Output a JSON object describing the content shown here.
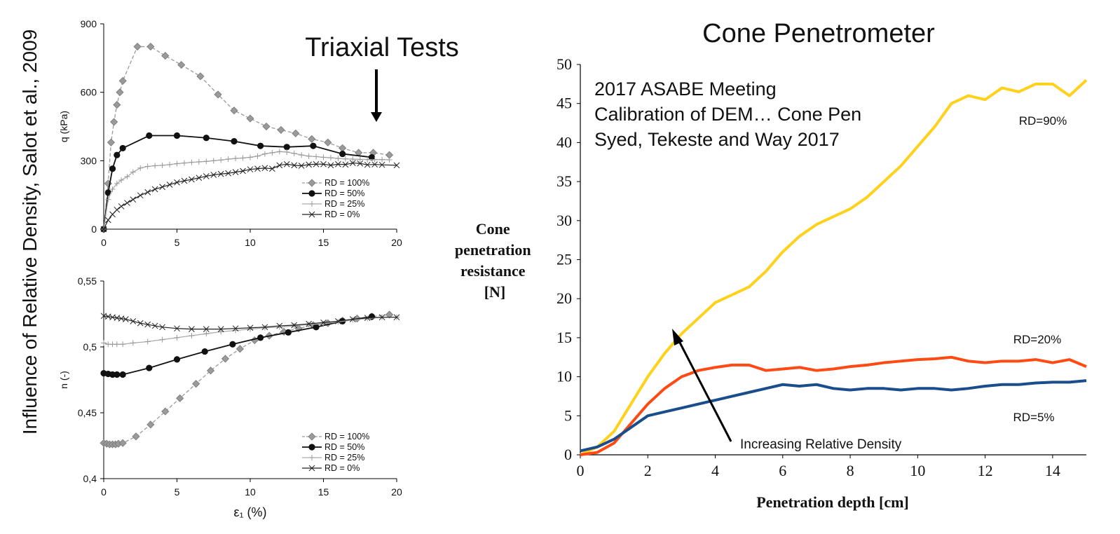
{
  "side_title": "Influence of Relative Density, Salot et al., 2009",
  "triaxial_title": "Triaxial Tests",
  "cone_title": "Cone Penetrometer",
  "cone_note": [
    "2017 ASABE Meeting",
    "Calibration of DEM… Cone Pen",
    "Syed, Tekeste and Way 2017"
  ],
  "arrow_label": "Increasing Relative Density",
  "colors": {
    "rd100": "#999999",
    "rd50": "#111111",
    "rd25": "#aaaaaa",
    "rd0": "#222222",
    "rd90": "#ffd11a",
    "rd20": "#ff4a14",
    "rd5": "#1a4d8c"
  },
  "chart_data": [
    {
      "type": "line",
      "ylabel": "q (kPa)",
      "xlabel": "",
      "xlim": [
        0,
        20
      ],
      "ylim": [
        0,
        900
      ],
      "xticks": [
        "0",
        "5",
        "10",
        "15",
        "20"
      ],
      "yticks": [
        "0",
        "300",
        "600",
        "900"
      ],
      "legend_position": "bottom-right",
      "series": [
        {
          "name": "RD = 100%",
          "marker": "diamond",
          "x": [
            0,
            0.3,
            0.5,
            0.7,
            0.9,
            1.1,
            1.3,
            2.3,
            3.2,
            4.2,
            5.3,
            6.6,
            7.8,
            8.9,
            10.0,
            11.1,
            12.1,
            13.1,
            14.2,
            15.3,
            16.3,
            17.4,
            18.4,
            19.5
          ],
          "y": [
            0,
            200,
            380,
            470,
            545,
            600,
            650,
            800,
            800,
            760,
            720,
            670,
            590,
            520,
            485,
            450,
            435,
            420,
            395,
            380,
            355,
            335,
            335,
            325
          ]
        },
        {
          "name": "RD = 50%",
          "marker": "circle",
          "x": [
            0,
            0.3,
            0.6,
            0.9,
            1.3,
            3.1,
            5.0,
            7.0,
            8.9,
            10.7,
            12.5,
            14.3,
            16.3,
            18.3
          ],
          "y": [
            0,
            160,
            265,
            325,
            355,
            410,
            410,
            400,
            385,
            365,
            360,
            365,
            330,
            315
          ]
        },
        {
          "name": "RD = 25%",
          "marker": "plus",
          "x": [
            0,
            0.3,
            0.6,
            0.9,
            1.2,
            1.6,
            2.0,
            2.5,
            3.0,
            3.5,
            4.0,
            4.5,
            5.0,
            5.5,
            6.0,
            6.5,
            7.0,
            7.5,
            8.0,
            8.5,
            9.0,
            9.5,
            10.0,
            10.5,
            11.0,
            11.5,
            12.0,
            12.5,
            13.0,
            13.5,
            14.0,
            14.5,
            15.0,
            15.5,
            16.0,
            16.5,
            17.0,
            17.5,
            18.0,
            18.5,
            19.0,
            19.5
          ],
          "y": [
            0,
            130,
            175,
            200,
            215,
            230,
            250,
            268,
            275,
            278,
            280,
            283,
            287,
            290,
            293,
            295,
            297,
            300,
            303,
            307,
            310,
            312,
            315,
            320,
            330,
            335,
            340,
            338,
            332,
            325,
            320,
            318,
            315,
            313,
            310,
            308,
            307,
            306,
            305,
            305,
            305,
            304
          ]
        },
        {
          "name": "RD = 0%",
          "marker": "x",
          "x": [
            0,
            0.3,
            0.6,
            0.9,
            1.2,
            1.6,
            2.0,
            2.5,
            3.0,
            3.5,
            4.0,
            4.5,
            5.0,
            5.5,
            6.0,
            6.5,
            7.0,
            7.5,
            8.0,
            8.5,
            9.0,
            9.5,
            10.0,
            10.5,
            11.0,
            11.5,
            12.0,
            12.5,
            13.0,
            13.5,
            14.0,
            14.5,
            15.0,
            15.5,
            16.0,
            16.5,
            17.0,
            17.5,
            18.0,
            18.5,
            19.0,
            20.0
          ],
          "y": [
            0,
            40,
            65,
            85,
            100,
            115,
            130,
            148,
            162,
            175,
            185,
            195,
            205,
            212,
            218,
            225,
            232,
            238,
            242,
            245,
            250,
            255,
            262,
            265,
            268,
            265,
            280,
            285,
            280,
            278,
            283,
            285,
            285,
            280,
            285,
            283,
            290,
            288,
            282,
            284,
            282,
            280
          ]
        }
      ]
    },
    {
      "type": "line",
      "ylabel": "n (-)",
      "xlabel": "ε₁ (%)",
      "xlim": [
        0,
        20
      ],
      "ylim": [
        0.4,
        0.55
      ],
      "xticks": [
        "0",
        "5",
        "10",
        "15",
        "20"
      ],
      "yticks": [
        "0,4",
        "0,45",
        "0,5",
        "0,55"
      ],
      "legend_position": "bottom-right",
      "series": [
        {
          "name": "RD = 100%",
          "marker": "diamond",
          "x": [
            0,
            0.2,
            0.4,
            0.6,
            0.8,
            1.0,
            1.3,
            2.2,
            3.2,
            4.2,
            5.2,
            6.3,
            7.3,
            8.3,
            9.3,
            10.3,
            11.3,
            12.3,
            13.3,
            14.3,
            15.3,
            16.3,
            17.3,
            18.3,
            19.5
          ],
          "y": [
            0.427,
            0.4265,
            0.426,
            0.426,
            0.426,
            0.4265,
            0.427,
            0.432,
            0.441,
            0.451,
            0.461,
            0.472,
            0.482,
            0.491,
            0.4985,
            0.505,
            0.5085,
            0.5115,
            0.514,
            0.5165,
            0.518,
            0.52,
            0.5215,
            0.523,
            0.5245
          ]
        },
        {
          "name": "RD = 50%",
          "marker": "circle",
          "x": [
            0,
            0.3,
            0.6,
            0.9,
            1.3,
            3.1,
            5.0,
            6.9,
            8.8,
            10.7,
            12.6,
            14.5,
            16.3,
            18.3
          ],
          "y": [
            0.48,
            0.4795,
            0.479,
            0.479,
            0.479,
            0.484,
            0.4905,
            0.4965,
            0.502,
            0.507,
            0.511,
            0.515,
            0.5195,
            0.523
          ]
        },
        {
          "name": "RD = 25%",
          "marker": "plus",
          "x": [
            0,
            0.3,
            0.6,
            0.9,
            1.3,
            2.0,
            3.0,
            4.0,
            5.0,
            6.0,
            7.0,
            8.0,
            9.0,
            10.0,
            11.0,
            12.0,
            13.0,
            14.0,
            15.0,
            16.0,
            17.0,
            18.0,
            19.0,
            20.0
          ],
          "y": [
            0.503,
            0.502,
            0.502,
            0.502,
            0.502,
            0.503,
            0.504,
            0.5055,
            0.507,
            0.5085,
            0.51,
            0.5115,
            0.5125,
            0.5135,
            0.5145,
            0.515,
            0.516,
            0.517,
            0.5175,
            0.519,
            0.5205,
            0.5215,
            0.5225,
            0.5225
          ]
        },
        {
          "name": "RD = 0%",
          "marker": "x",
          "x": [
            0,
            0.3,
            0.6,
            0.9,
            1.2,
            1.5,
            2.0,
            2.5,
            3.0,
            3.5,
            4.0,
            5.0,
            6.0,
            7.0,
            8.0,
            9.0,
            10.0,
            11.0,
            12.0,
            13.0,
            14.0,
            15.0,
            16.0,
            17.0,
            18.0,
            19.0,
            20.0
          ],
          "y": [
            0.5235,
            0.523,
            0.5225,
            0.522,
            0.5215,
            0.521,
            0.5195,
            0.518,
            0.517,
            0.516,
            0.515,
            0.514,
            0.5135,
            0.5135,
            0.5135,
            0.514,
            0.5145,
            0.515,
            0.516,
            0.5165,
            0.5175,
            0.5185,
            0.5195,
            0.521,
            0.522,
            0.5225,
            0.5225
          ]
        }
      ]
    },
    {
      "type": "line",
      "xlabel": "Penetration depth [cm]",
      "ylabel": "Cone penetration resistance [N]",
      "xlim": [
        0,
        15
      ],
      "ylim": [
        0,
        50
      ],
      "xticks": [
        "0",
        "2",
        "4",
        "6",
        "8",
        "10",
        "12",
        "14"
      ],
      "yticks": [
        "0",
        "5",
        "10",
        "15",
        "20",
        "25",
        "30",
        "35",
        "40",
        "45",
        "50"
      ],
      "series": [
        {
          "name": "RD=90%",
          "x": [
            0,
            0.5,
            1.0,
            1.5,
            2.0,
            2.5,
            3.0,
            3.5,
            4.0,
            4.5,
            5.0,
            5.5,
            6.0,
            6.5,
            7.0,
            7.5,
            8.0,
            8.5,
            9.0,
            9.5,
            10.0,
            10.5,
            11.0,
            11.5,
            12.0,
            12.5,
            13.0,
            13.5,
            14.0,
            14.5,
            15.0
          ],
          "y": [
            0,
            1,
            3,
            6.5,
            10,
            13,
            15.5,
            17.5,
            19.5,
            20.5,
            21.5,
            23.5,
            26,
            28,
            29.5,
            30.5,
            31.5,
            33,
            35,
            37,
            39.5,
            42,
            45,
            46,
            45.5,
            47,
            46.5,
            47.5,
            47.5,
            46,
            48
          ]
        },
        {
          "name": "RD=20%",
          "x": [
            0,
            0.5,
            1.0,
            1.5,
            2.0,
            2.5,
            3.0,
            3.5,
            4.0,
            4.5,
            5.0,
            5.5,
            6.0,
            6.5,
            7.0,
            7.5,
            8.0,
            8.5,
            9.0,
            9.5,
            10.0,
            10.5,
            11.0,
            11.5,
            12.0,
            12.5,
            13.0,
            13.5,
            14.0,
            14.5,
            15.0
          ],
          "y": [
            0,
            0.3,
            1.5,
            4,
            6.5,
            8.5,
            10,
            10.8,
            11.2,
            11.5,
            11.5,
            10.8,
            11,
            11.2,
            10.8,
            11,
            11.3,
            11.5,
            11.8,
            12,
            12.2,
            12.3,
            12.5,
            12,
            11.8,
            12,
            12,
            12.2,
            11.8,
            12.2,
            11.3
          ]
        },
        {
          "name": "RD=5%",
          "x": [
            0,
            0.5,
            1.0,
            1.5,
            2.0,
            2.5,
            3.0,
            3.5,
            4.0,
            4.5,
            5.0,
            5.5,
            6.0,
            6.5,
            7.0,
            7.5,
            8.0,
            8.5,
            9.0,
            9.5,
            10.0,
            10.5,
            11.0,
            11.5,
            12.0,
            12.5,
            13.0,
            13.5,
            14.0,
            14.5,
            15.0
          ],
          "y": [
            0.5,
            1,
            2,
            3.5,
            5,
            5.5,
            6,
            6.5,
            7,
            7.5,
            8,
            8.5,
            9,
            8.8,
            9,
            8.5,
            8.3,
            8.5,
            8.5,
            8.3,
            8.5,
            8.5,
            8.3,
            8.5,
            8.8,
            9,
            9,
            9.2,
            9.3,
            9.3,
            9.5
          ]
        }
      ]
    }
  ]
}
